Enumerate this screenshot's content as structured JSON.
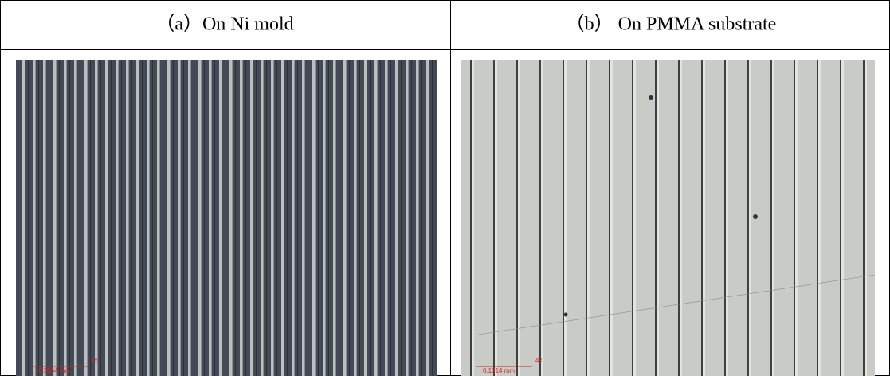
{
  "table": {
    "header": [
      "（a）On Ni mold",
      "（b） On PMMA substrate"
    ],
    "scale_bars": [
      {
        "length": "0.2564 mm",
        "magnification": "4x"
      },
      {
        "length": "0.1314 mm",
        "magnification": "4x"
      }
    ]
  }
}
